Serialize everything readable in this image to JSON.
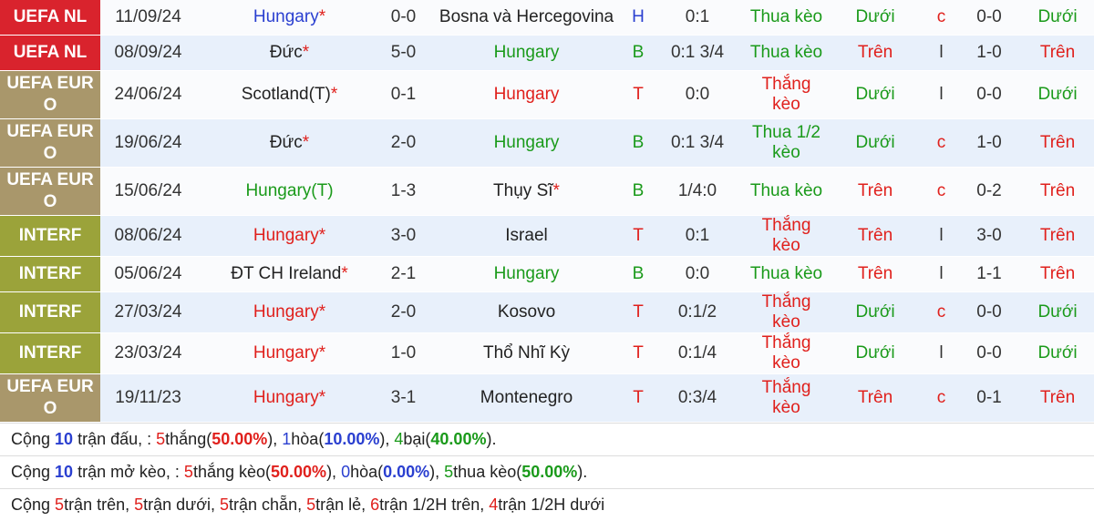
{
  "rows": [
    {
      "league": {
        "text": "UEFA NL",
        "color": "#d9232d"
      },
      "date": "11/09/24",
      "home": {
        "text": "Hungary",
        "color": "#2a3fd0",
        "star": "*"
      },
      "score": "0-0",
      "away": {
        "text": "Bosna và Hercegovina",
        "color": "#222"
      },
      "ha": {
        "text": "H",
        "color": "#2a3fd0"
      },
      "hcp": "0:1",
      "result": {
        "text": "Thua kèo",
        "color": "#1a9a1a"
      },
      "ou": {
        "text": "Dưới",
        "color": "#1a9a1a"
      },
      "cl": {
        "text": "c",
        "color": "#e0201c"
      },
      "ht": "0-0",
      "ou2": {
        "text": "Dưới",
        "color": "#1a9a1a"
      }
    },
    {
      "league": {
        "text": "UEFA NL",
        "color": "#d9232d"
      },
      "date": "08/09/24",
      "home": {
        "text": "Đức",
        "color": "#222",
        "star": "*"
      },
      "score": "5-0",
      "away": {
        "text": "Hungary",
        "color": "#1a9a1a"
      },
      "ha": {
        "text": "B",
        "color": "#1a9a1a"
      },
      "hcp": "0:1 3/4",
      "result": {
        "text": "Thua kèo",
        "color": "#1a9a1a"
      },
      "ou": {
        "text": "Trên",
        "color": "#e0201c"
      },
      "cl": {
        "text": "l",
        "color": "#333"
      },
      "ht": "1-0",
      "ou2": {
        "text": "Trên",
        "color": "#e0201c"
      }
    },
    {
      "league": {
        "text": "UEFA EURO",
        "color": "#a9976b"
      },
      "date": "24/06/24",
      "home": {
        "text": "Scotland(T)",
        "color": "#222",
        "star": "*"
      },
      "score": "0-1",
      "away": {
        "text": "Hungary",
        "color": "#e0201c"
      },
      "ha": {
        "text": "T",
        "color": "#e0201c"
      },
      "hcp": "0:0",
      "result": {
        "text": "Thắng kèo",
        "color": "#e0201c"
      },
      "ou": {
        "text": "Dưới",
        "color": "#1a9a1a"
      },
      "cl": {
        "text": "l",
        "color": "#333"
      },
      "ht": "0-0",
      "ou2": {
        "text": "Dưới",
        "color": "#1a9a1a"
      }
    },
    {
      "league": {
        "text": "UEFA EURO",
        "color": "#a9976b"
      },
      "date": "19/06/24",
      "home": {
        "text": "Đức",
        "color": "#222",
        "star": "*"
      },
      "score": "2-0",
      "away": {
        "text": "Hungary",
        "color": "#1a9a1a"
      },
      "ha": {
        "text": "B",
        "color": "#1a9a1a"
      },
      "hcp": "0:1 3/4",
      "result": {
        "text": "Thua 1/2 kèo",
        "color": "#1a9a1a"
      },
      "ou": {
        "text": "Dưới",
        "color": "#1a9a1a"
      },
      "cl": {
        "text": "c",
        "color": "#e0201c"
      },
      "ht": "1-0",
      "ou2": {
        "text": "Trên",
        "color": "#e0201c"
      }
    },
    {
      "league": {
        "text": "UEFA EURO",
        "color": "#a9976b"
      },
      "date": "15/06/24",
      "home": {
        "text": "Hungary(T)",
        "color": "#1a9a1a"
      },
      "score": "1-3",
      "away": {
        "text": "Thụy Sĩ",
        "color": "#222",
        "star": "*"
      },
      "ha": {
        "text": "B",
        "color": "#1a9a1a"
      },
      "hcp": "1/4:0",
      "result": {
        "text": "Thua kèo",
        "color": "#1a9a1a"
      },
      "ou": {
        "text": "Trên",
        "color": "#e0201c"
      },
      "cl": {
        "text": "c",
        "color": "#e0201c"
      },
      "ht": "0-2",
      "ou2": {
        "text": "Trên",
        "color": "#e0201c"
      }
    },
    {
      "league": {
        "text": "INTERF",
        "color": "#9ba33a"
      },
      "date": "08/06/24",
      "home": {
        "text": "Hungary",
        "color": "#e0201c",
        "star": "*"
      },
      "score": "3-0",
      "away": {
        "text": "Israel",
        "color": "#222"
      },
      "ha": {
        "text": "T",
        "color": "#e0201c"
      },
      "hcp": "0:1",
      "result": {
        "text": "Thắng kèo",
        "color": "#e0201c"
      },
      "ou": {
        "text": "Trên",
        "color": "#e0201c"
      },
      "cl": {
        "text": "l",
        "color": "#333"
      },
      "ht": "3-0",
      "ou2": {
        "text": "Trên",
        "color": "#e0201c"
      }
    },
    {
      "league": {
        "text": "INTERF",
        "color": "#9ba33a"
      },
      "date": "05/06/24",
      "home": {
        "text": "ĐT CH Ireland",
        "color": "#222",
        "star": "*"
      },
      "score": "2-1",
      "away": {
        "text": "Hungary",
        "color": "#1a9a1a"
      },
      "ha": {
        "text": "B",
        "color": "#1a9a1a"
      },
      "hcp": "0:0",
      "result": {
        "text": "Thua kèo",
        "color": "#1a9a1a"
      },
      "ou": {
        "text": "Trên",
        "color": "#e0201c"
      },
      "cl": {
        "text": "l",
        "color": "#333"
      },
      "ht": "1-1",
      "ou2": {
        "text": "Trên",
        "color": "#e0201c"
      }
    },
    {
      "league": {
        "text": "INTERF",
        "color": "#9ba33a"
      },
      "date": "27/03/24",
      "home": {
        "text": "Hungary",
        "color": "#e0201c",
        "star": "*"
      },
      "score": "2-0",
      "away": {
        "text": "Kosovo",
        "color": "#222"
      },
      "ha": {
        "text": "T",
        "color": "#e0201c"
      },
      "hcp": "0:1/2",
      "result": {
        "text": "Thắng kèo",
        "color": "#e0201c"
      },
      "ou": {
        "text": "Dưới",
        "color": "#1a9a1a"
      },
      "cl": {
        "text": "c",
        "color": "#e0201c"
      },
      "ht": "0-0",
      "ou2": {
        "text": "Dưới",
        "color": "#1a9a1a"
      }
    },
    {
      "league": {
        "text": "INTERF",
        "color": "#9ba33a"
      },
      "date": "23/03/24",
      "home": {
        "text": "Hungary",
        "color": "#e0201c",
        "star": "*"
      },
      "score": "1-0",
      "away": {
        "text": "Thổ Nhĩ Kỳ",
        "color": "#222"
      },
      "ha": {
        "text": "T",
        "color": "#e0201c"
      },
      "hcp": "0:1/4",
      "result": {
        "text": "Thắng kèo",
        "color": "#e0201c"
      },
      "ou": {
        "text": "Dưới",
        "color": "#1a9a1a"
      },
      "cl": {
        "text": "l",
        "color": "#333"
      },
      "ht": "0-0",
      "ou2": {
        "text": "Dưới",
        "color": "#1a9a1a"
      }
    },
    {
      "league": {
        "text": "UEFA EURO",
        "color": "#a9976b"
      },
      "date": "19/11/23",
      "home": {
        "text": "Hungary",
        "color": "#e0201c",
        "star": "*"
      },
      "score": "3-1",
      "away": {
        "text": "Montenegro",
        "color": "#222"
      },
      "ha": {
        "text": "T",
        "color": "#e0201c"
      },
      "hcp": "0:3/4",
      "result": {
        "text": "Thắng kèo",
        "color": "#e0201c"
      },
      "ou": {
        "text": "Trên",
        "color": "#e0201c"
      },
      "cl": {
        "text": "c",
        "color": "#e0201c"
      },
      "ht": "0-1",
      "ou2": {
        "text": "Trên",
        "color": "#e0201c"
      }
    }
  ],
  "summary": [
    [
      {
        "text": "Cộng "
      },
      {
        "text": "10",
        "color": "#2a3fd0",
        "bold": true
      },
      {
        "text": " trận đấu, : "
      },
      {
        "text": "5",
        "color": "#e0201c"
      },
      {
        "text": "thắng("
      },
      {
        "text": "50.00%",
        "color": "#e0201c",
        "bold": true
      },
      {
        "text": "), "
      },
      {
        "text": "1",
        "color": "#2a3fd0"
      },
      {
        "text": "hòa("
      },
      {
        "text": "10.00%",
        "color": "#2a3fd0",
        "bold": true
      },
      {
        "text": "), "
      },
      {
        "text": "4",
        "color": "#1a9a1a"
      },
      {
        "text": "bại("
      },
      {
        "text": "40.00%",
        "color": "#1a9a1a",
        "bold": true
      },
      {
        "text": ")."
      }
    ],
    [
      {
        "text": "Cộng "
      },
      {
        "text": "10",
        "color": "#2a3fd0",
        "bold": true
      },
      {
        "text": " trận mở kèo, : "
      },
      {
        "text": "5",
        "color": "#e0201c"
      },
      {
        "text": "thắng kèo("
      },
      {
        "text": "50.00%",
        "color": "#e0201c",
        "bold": true
      },
      {
        "text": "), "
      },
      {
        "text": "0",
        "color": "#2a3fd0"
      },
      {
        "text": "hòa("
      },
      {
        "text": "0.00%",
        "color": "#2a3fd0",
        "bold": true
      },
      {
        "text": "), "
      },
      {
        "text": "5",
        "color": "#1a9a1a"
      },
      {
        "text": "thua kèo("
      },
      {
        "text": "50.00%",
        "color": "#1a9a1a",
        "bold": true
      },
      {
        "text": ")."
      }
    ],
    [
      {
        "text": "Cộng "
      },
      {
        "text": "5",
        "color": "#e0201c"
      },
      {
        "text": "trận trên, "
      },
      {
        "text": "5",
        "color": "#e0201c"
      },
      {
        "text": "trận dưới, "
      },
      {
        "text": "5",
        "color": "#e0201c"
      },
      {
        "text": "trận chẵn, "
      },
      {
        "text": "5",
        "color": "#e0201c"
      },
      {
        "text": "trận lẻ, "
      },
      {
        "text": "6",
        "color": "#e0201c"
      },
      {
        "text": "trận 1/2H trên, "
      },
      {
        "text": "4",
        "color": "#e0201c"
      },
      {
        "text": "trận 1/2H dưới"
      }
    ]
  ]
}
